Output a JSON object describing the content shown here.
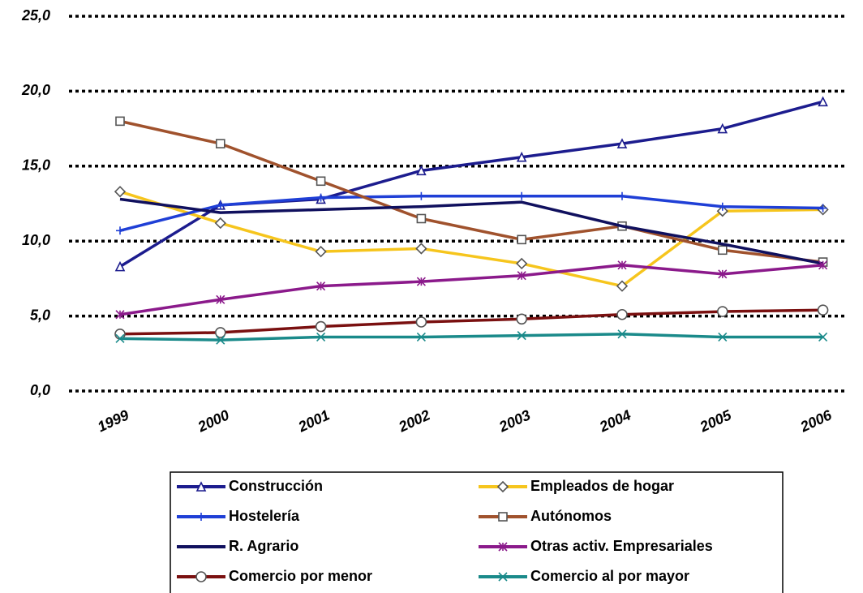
{
  "chart_data": {
    "type": "line",
    "categories": [
      "1999",
      "2000",
      "2001",
      "2002",
      "2003",
      "2004",
      "2005",
      "2006"
    ],
    "ylim": [
      0,
      25
    ],
    "yticks": [
      {
        "value": 0,
        "label": "0,0"
      },
      {
        "value": 5,
        "label": "5,0"
      },
      {
        "value": 10,
        "label": "10,0"
      },
      {
        "value": 15,
        "label": "15,0"
      },
      {
        "value": 20,
        "label": "20,0"
      },
      {
        "value": 25,
        "label": "25,0"
      }
    ],
    "grid": true,
    "legend": "bottom",
    "series": [
      {
        "name": "Construcción",
        "color": "#1c1c8e",
        "marker": "triangle",
        "values": [
          8.3,
          12.4,
          12.8,
          14.7,
          15.6,
          16.5,
          17.5,
          19.3
        ]
      },
      {
        "name": "Empleados de hogar",
        "color": "#f6c51d",
        "marker": "diamond",
        "values": [
          13.3,
          11.2,
          9.3,
          9.5,
          8.5,
          7.0,
          12.0,
          12.1
        ]
      },
      {
        "name": "Hostelería",
        "color": "#1f3fd6",
        "marker": "plus",
        "values": [
          10.7,
          12.4,
          12.9,
          13.0,
          13.0,
          13.0,
          12.3,
          12.2
        ]
      },
      {
        "name": "Autónomos",
        "color": "#a0522d",
        "marker": "square",
        "values": [
          18.0,
          16.5,
          14.0,
          11.5,
          10.1,
          11.0,
          9.4,
          8.6
        ]
      },
      {
        "name": "R. Agrario",
        "color": "#10105e",
        "marker": "none",
        "values": [
          12.8,
          11.9,
          12.1,
          12.3,
          12.6,
          11.0,
          9.8,
          8.5
        ]
      },
      {
        "name": "Otras activ. Empresariales",
        "color": "#8b1a8b",
        "marker": "star",
        "values": [
          5.1,
          6.1,
          7.0,
          7.3,
          7.7,
          8.4,
          7.8,
          8.4
        ]
      },
      {
        "name": "Comercio por menor",
        "color": "#7a1010",
        "marker": "circle",
        "values": [
          3.8,
          3.9,
          4.3,
          4.6,
          4.8,
          5.1,
          5.3,
          5.4
        ]
      },
      {
        "name": "Comercio al por mayor",
        "color": "#1a8a8a",
        "marker": "x",
        "values": [
          3.5,
          3.4,
          3.6,
          3.6,
          3.7,
          3.8,
          3.6,
          3.6
        ]
      }
    ]
  }
}
